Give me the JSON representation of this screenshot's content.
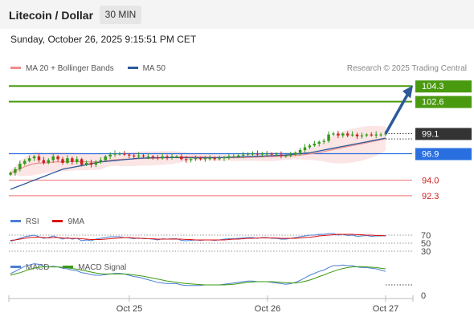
{
  "header": {
    "title": "Litecoin / Dollar",
    "timeframe": "30 MIN"
  },
  "datetime": "Sunday, October 26, 2025 9:15:51 PM CET",
  "credit": "Research © 2025 Trading Central",
  "legend_main": [
    {
      "label": "MA 20 + Bollinger Bands",
      "color": "#f08c8c"
    },
    {
      "label": "MA 50",
      "color": "#2c5a9a"
    }
  ],
  "legend_rsi": [
    {
      "label": "RSI",
      "color": "#4a7fd4"
    },
    {
      "label": "9MA",
      "color": "#dd1111"
    }
  ],
  "legend_macd": [
    {
      "label": "MACD",
      "color": "#4a7fd4"
    },
    {
      "label": "MACD Signal",
      "color": "#3a9a10"
    }
  ],
  "colors": {
    "up": "#2f9a1a",
    "down": "#cc2222",
    "green_level": "#4a9a10",
    "blue_level": "#2a6fe0",
    "red_level": "#f08c8c",
    "current": "#333333",
    "arrow": "#2c5a9a"
  },
  "chart_data": {
    "type": "candlestick",
    "x_labels": [
      "Oct 25",
      "Oct 26",
      "Oct 27"
    ],
    "ylim": [
      91.5,
      105.2
    ],
    "levels": [
      {
        "value": 104.3,
        "label": "104.3",
        "style": "green"
      },
      {
        "value": 102.6,
        "label": "102.6",
        "style": "green"
      },
      {
        "value": 99.1,
        "label": "99.1",
        "style": "current"
      },
      {
        "value": 96.9,
        "label": "96.9",
        "style": "blue"
      },
      {
        "value": 94.0,
        "label": "94.0",
        "style": "red"
      },
      {
        "value": 92.3,
        "label": "92.3",
        "style": "red"
      }
    ],
    "close": [
      94.8,
      95.2,
      95.8,
      96.1,
      96.4,
      96.6,
      96.2,
      95.9,
      96.2,
      96.6,
      96.3,
      95.9,
      96.4,
      96.0,
      96.3,
      95.7,
      95.9,
      95.7,
      96.0,
      96.2,
      96.6,
      96.8,
      96.9,
      96.9,
      96.8,
      96.7,
      96.6,
      96.7,
      96.6,
      96.6,
      96.5,
      96.4,
      96.6,
      96.5,
      96.6,
      96.6,
      96.3,
      96.2,
      96.3,
      96.4,
      96.3,
      96.4,
      96.4,
      96.3,
      96.4,
      96.5,
      96.6,
      96.6,
      96.7,
      96.8,
      96.9,
      96.9,
      96.8,
      96.9,
      96.9,
      96.8,
      96.8,
      96.7,
      96.7,
      96.8,
      97.0,
      97.3,
      97.6,
      97.8,
      98.0,
      98.2,
      98.3,
      99.0,
      99.1,
      98.9,
      99.1,
      98.9,
      99.0,
      98.8,
      98.9,
      99.0,
      98.9,
      99.0,
      99.0,
      99.1
    ],
    "ma50": [
      93.0,
      93.2,
      93.4,
      93.6,
      93.8,
      94.0,
      94.2,
      94.4,
      94.6,
      94.8,
      95.0,
      95.2,
      95.3,
      95.4,
      95.5,
      95.6,
      95.7,
      95.8,
      95.9,
      96.0,
      96.05,
      96.1,
      96.15,
      96.2,
      96.25,
      96.3,
      96.35,
      96.4,
      96.42,
      96.44,
      96.45,
      96.46,
      96.47,
      96.47,
      96.47,
      96.47,
      96.46,
      96.46,
      96.45,
      96.45,
      96.45,
      96.45,
      96.45,
      96.46,
      96.47,
      96.48,
      96.5,
      96.52,
      96.54,
      96.56,
      96.58,
      96.6,
      96.62,
      96.64,
      96.66,
      96.68,
      96.7,
      96.72,
      96.75,
      96.8,
      96.85,
      96.9,
      96.95,
      97.0,
      97.1,
      97.2,
      97.3,
      97.4,
      97.5,
      97.6,
      97.7,
      97.8,
      97.9,
      98.0,
      98.1,
      98.2,
      98.3,
      98.4,
      98.5,
      98.6
    ],
    "rsi": {
      "levels": [
        70,
        50,
        30
      ],
      "rsi": [
        55,
        58,
        62,
        66,
        68,
        70,
        66,
        62,
        64,
        68,
        64,
        60,
        64,
        60,
        62,
        56,
        58,
        56,
        60,
        62,
        64,
        66,
        66,
        66,
        64,
        63,
        61,
        63,
        61,
        61,
        60,
        58,
        61,
        60,
        61,
        61,
        57,
        56,
        57,
        58,
        57,
        58,
        58,
        57,
        58,
        60,
        61,
        61,
        62,
        63,
        64,
        64,
        62,
        64,
        64,
        62,
        62,
        60,
        60,
        62,
        64,
        66,
        68,
        70,
        70,
        72,
        72,
        74,
        74,
        70,
        72,
        69,
        70,
        67,
        68,
        69,
        67,
        68,
        68,
        69
      ],
      "ma": [
        57,
        58,
        60,
        62,
        64,
        65,
        65,
        64,
        63,
        64,
        64,
        63,
        62,
        62,
        62,
        61,
        60,
        59,
        59,
        59,
        60,
        61,
        62,
        63,
        64,
        64,
        63,
        62,
        62,
        61,
        61,
        60,
        60,
        60,
        60,
        60,
        60,
        59,
        59,
        58,
        58,
        58,
        58,
        58,
        58,
        58,
        59,
        60,
        60,
        61,
        62,
        62,
        63,
        63,
        63,
        63,
        63,
        62,
        62,
        62,
        62,
        63,
        64,
        65,
        66,
        68,
        69,
        70,
        71,
        72,
        72,
        72,
        72,
        71,
        71,
        70,
        70,
        69,
        69,
        68
      ]
    },
    "macd": {
      "baseline_label": "0",
      "macd": [
        0.35,
        0.42,
        0.5,
        0.58,
        0.62,
        0.66,
        0.64,
        0.58,
        0.56,
        0.58,
        0.56,
        0.52,
        0.5,
        0.46,
        0.44,
        0.38,
        0.36,
        0.32,
        0.3,
        0.3,
        0.32,
        0.34,
        0.36,
        0.36,
        0.34,
        0.3,
        0.26,
        0.24,
        0.2,
        0.16,
        0.12,
        0.08,
        0.06,
        0.04,
        0.04,
        0.04,
        0.0,
        -0.02,
        -0.02,
        -0.02,
        -0.02,
        0.0,
        0.0,
        0.0,
        0.0,
        0.02,
        0.04,
        0.06,
        0.08,
        0.1,
        0.12,
        0.12,
        0.1,
        0.1,
        0.1,
        0.08,
        0.06,
        0.04,
        0.02,
        0.04,
        0.08,
        0.14,
        0.22,
        0.3,
        0.36,
        0.42,
        0.46,
        0.54,
        0.6,
        0.6,
        0.62,
        0.6,
        0.6,
        0.56,
        0.54,
        0.54,
        0.52,
        0.5,
        0.46,
        0.42
      ],
      "signal": [
        0.3,
        0.34,
        0.38,
        0.43,
        0.48,
        0.52,
        0.55,
        0.56,
        0.56,
        0.56,
        0.56,
        0.55,
        0.53,
        0.51,
        0.49,
        0.46,
        0.43,
        0.4,
        0.37,
        0.35,
        0.34,
        0.34,
        0.34,
        0.34,
        0.34,
        0.33,
        0.31,
        0.29,
        0.27,
        0.24,
        0.21,
        0.18,
        0.15,
        0.12,
        0.1,
        0.08,
        0.06,
        0.04,
        0.03,
        0.02,
        0.01,
        0.0,
        0.0,
        0.0,
        0.0,
        0.0,
        0.01,
        0.02,
        0.04,
        0.06,
        0.08,
        0.09,
        0.1,
        0.1,
        0.1,
        0.1,
        0.09,
        0.08,
        0.07,
        0.06,
        0.06,
        0.08,
        0.11,
        0.15,
        0.2,
        0.26,
        0.31,
        0.37,
        0.42,
        0.47,
        0.51,
        0.54,
        0.56,
        0.57,
        0.57,
        0.56,
        0.55,
        0.54,
        0.52,
        0.5
      ]
    }
  }
}
